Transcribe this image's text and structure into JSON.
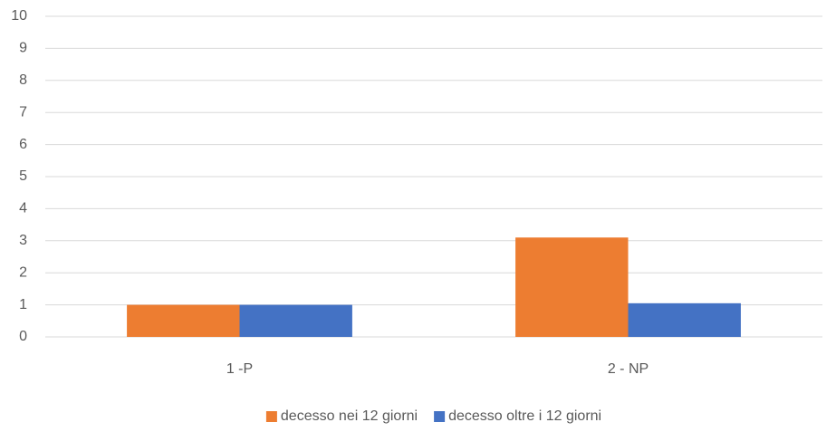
{
  "chart_data": {
    "type": "bar",
    "categories": [
      "1 -P",
      "2 - NP"
    ],
    "series": [
      {
        "name": "decesso nei 12 giorni",
        "color": "#ed7d31",
        "values": [
          1,
          3.1
        ]
      },
      {
        "name": "decesso oltre i 12 giorni",
        "color": "#4472c4",
        "values": [
          1,
          1.05
        ]
      }
    ],
    "ylim": [
      0,
      10
    ],
    "yticks": [
      0,
      1,
      2,
      3,
      4,
      5,
      6,
      7,
      8,
      9,
      10
    ],
    "grid": true,
    "legend": "bottom"
  }
}
